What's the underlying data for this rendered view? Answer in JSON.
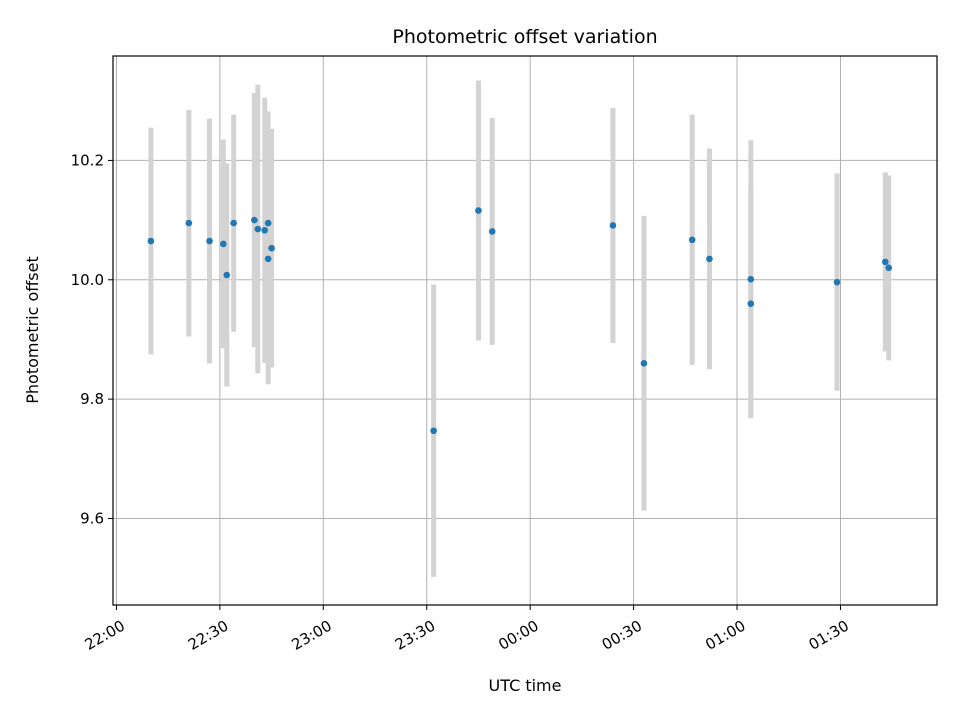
{
  "chart_data": {
    "type": "scatter",
    "title": "Photometric offset variation",
    "xlabel": "UTC time",
    "ylabel": "Photometric offset",
    "x_tick_labels": [
      "22:00",
      "22:30",
      "23:00",
      "23:30",
      "00:00",
      "00:30",
      "01:00",
      "01:30"
    ],
    "y_tick_labels": [
      "9.6",
      "9.8",
      "10.0",
      "10.2"
    ],
    "y_ticks": [
      9.6,
      9.8,
      10.0,
      10.2
    ],
    "xlim": [
      "21:59",
      "01:58"
    ],
    "ylim": [
      9.455,
      10.375
    ],
    "grid": true,
    "marker_color": "#1f77b4",
    "errorbar_color": "#d3d3d3",
    "points": [
      {
        "x": "22:10",
        "y": 10.065,
        "err": 0.19
      },
      {
        "x": "22:21",
        "y": 10.095,
        "err": 0.19
      },
      {
        "x": "22:27",
        "y": 10.065,
        "err": 0.205
      },
      {
        "x": "22:31",
        "y": 10.06,
        "err": 0.175
      },
      {
        "x": "22:32",
        "y": 10.008,
        "err": 0.187
      },
      {
        "x": "22:34",
        "y": 10.095,
        "err": 0.182
      },
      {
        "x": "22:40",
        "y": 10.1,
        "err": 0.213
      },
      {
        "x": "22:41",
        "y": 10.085,
        "err": 0.242
      },
      {
        "x": "22:43",
        "y": 10.083,
        "err": 0.222
      },
      {
        "x": "22:44",
        "y": 10.095,
        "err": 0.187
      },
      {
        "x": "22:44",
        "y": 10.035,
        "err": 0.21
      },
      {
        "x": "22:45",
        "y": 10.053,
        "err": 0.2
      },
      {
        "x": "23:32",
        "y": 9.747,
        "err": 0.245
      },
      {
        "x": "23:45",
        "y": 10.116,
        "err": 0.218
      },
      {
        "x": "23:49",
        "y": 10.081,
        "err": 0.19
      },
      {
        "x": "00:24",
        "y": 10.091,
        "err": 0.197
      },
      {
        "x": "00:33",
        "y": 9.86,
        "err": 0.247
      },
      {
        "x": "00:47",
        "y": 10.067,
        "err": 0.21
      },
      {
        "x": "00:52",
        "y": 10.035,
        "err": 0.185
      },
      {
        "x": "01:04",
        "y": 10.001,
        "err": 0.233
      },
      {
        "x": "01:04",
        "y": 9.96,
        "err": 0.19
      },
      {
        "x": "01:29",
        "y": 9.996,
        "err": 0.182
      },
      {
        "x": "01:43",
        "y": 10.03,
        "err": 0.15
      },
      {
        "x": "01:44",
        "y": 10.02,
        "err": 0.155
      }
    ]
  }
}
